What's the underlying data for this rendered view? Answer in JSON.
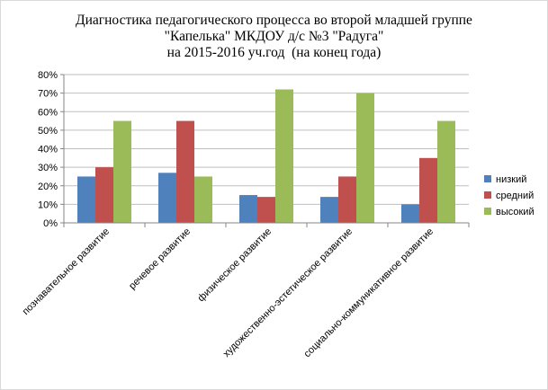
{
  "chart_data": {
    "type": "bar",
    "title_lines": [
      "Диагностика педагогического процесса во второй младшей группе",
      "\"Капелька\" МКДОУ д/с №3 \"Радуга\"",
      "на 2015-2016 уч.год  (на конец года)"
    ],
    "categories": [
      "познавательное развитие",
      "речевое развитие",
      "физическое развитие",
      "художественно-эстетическое развитие",
      "социально-коммуникативное развитие"
    ],
    "series": [
      {
        "name": "низкий",
        "color": "#4f81bd",
        "values": [
          25,
          27,
          15,
          14,
          10
        ]
      },
      {
        "name": "средний",
        "color": "#c0504d",
        "values": [
          30,
          55,
          14,
          25,
          35
        ]
      },
      {
        "name": "высокий",
        "color": "#9bbb59",
        "values": [
          55,
          25,
          72,
          70,
          55
        ]
      }
    ],
    "ylim": [
      0,
      80
    ],
    "y_ticks": [
      "0%",
      "10%",
      "20%",
      "30%",
      "40%",
      "50%",
      "60%",
      "70%",
      "80%"
    ],
    "ylabel": "",
    "xlabel": "",
    "grid": true,
    "legend_position": "right"
  }
}
